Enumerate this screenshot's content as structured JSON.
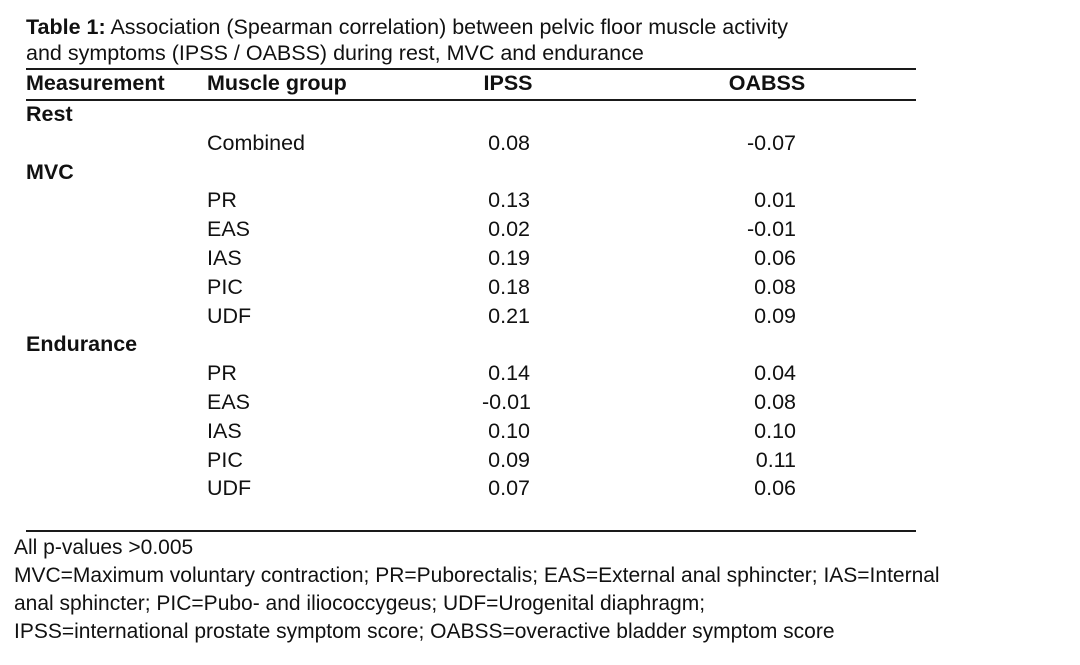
{
  "caption": {
    "label": "Table 1:",
    "line1": " Association (Spearman correlation) between pelvic floor muscle activity",
    "line2": "and symptoms (IPSS / OABSS) during rest, MVC and endurance"
  },
  "headers": {
    "measurement": "Measurement",
    "muscle_group": "Muscle group",
    "ipss": "IPSS",
    "oabss": "OABSS"
  },
  "sections": [
    {
      "name": "Rest",
      "rows": [
        {
          "group": "Combined",
          "ipss": "0.08",
          "oabss": "-0.07"
        }
      ]
    },
    {
      "name": "MVC",
      "rows": [
        {
          "group": "PR",
          "ipss": "0.13",
          "oabss": "0.01"
        },
        {
          "group": "EAS",
          "ipss": "0.02",
          "oabss": "-0.01"
        },
        {
          "group": "IAS",
          "ipss": "0.19",
          "oabss": "0.06"
        },
        {
          "group": "PIC",
          "ipss": "0.18",
          "oabss": "0.08"
        },
        {
          "group": "UDF",
          "ipss": "0.21",
          "oabss": "0.09"
        }
      ]
    },
    {
      "name": "Endurance",
      "rows": [
        {
          "group": "PR",
          "ipss": "0.14",
          "oabss": "0.04"
        },
        {
          "group": "EAS",
          "ipss": "-0.01",
          "oabss": "0.08"
        },
        {
          "group": "IAS",
          "ipss": "0.10",
          "oabss": "0.10"
        },
        {
          "group": "PIC",
          "ipss": "0.09",
          "oabss": "0.11"
        },
        {
          "group": "UDF",
          "ipss": "0.07",
          "oabss": "0.06"
        }
      ]
    }
  ],
  "footnotes": {
    "line1": "All p-values >0.005",
    "line2": "MVC=Maximum voluntary contraction; PR=Puborectalis; EAS=External anal sphincter; IAS=Internal",
    "line3": "anal sphincter; PIC=Pubo- and iliococcygeus; UDF=Urogenital diaphragm;",
    "line4": "IPSS=international prostate symptom score; OABSS=overactive bladder symptom score"
  }
}
